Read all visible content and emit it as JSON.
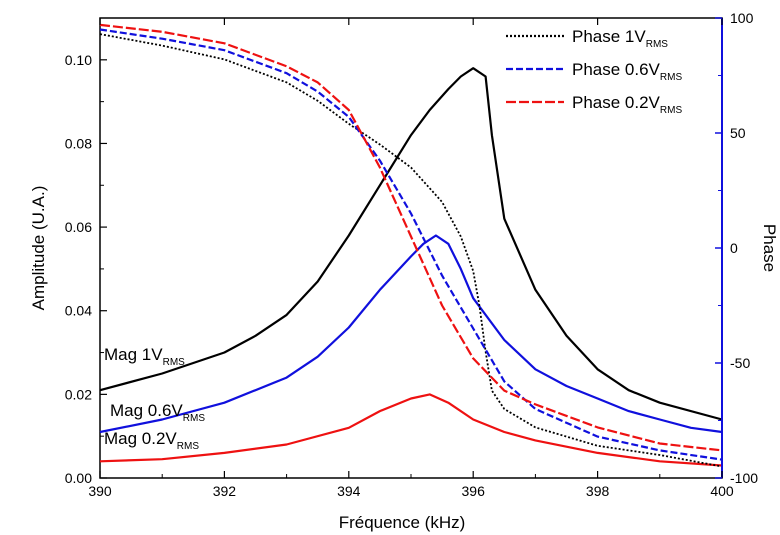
{
  "chart_data": {
    "type": "line",
    "title": "",
    "xlabel": "Fréquence (kHz)",
    "ylabel_left": "Amplitude (U.A.)",
    "ylabel_right": "Phase",
    "xlim": [
      390,
      400
    ],
    "ylim_left": [
      0.0,
      0.11
    ],
    "ylim_right": [
      -100,
      100
    ],
    "x_ticks": [
      "390",
      "392",
      "394",
      "396",
      "398",
      "400"
    ],
    "y_left_ticks": [
      "0.00",
      "0.02",
      "0.04",
      "0.06",
      "0.08",
      "0.10"
    ],
    "y_right_ticks": [
      "-100",
      "-50",
      "0",
      "50",
      "100"
    ],
    "legend_position": "top-right",
    "colors": {
      "v1": "#000000",
      "v06": "#1010dd",
      "v02": "#ee1111",
      "right_axis": "#1010dd"
    },
    "series": [
      {
        "name": "Mag 1V",
        "name_sub": "RMS",
        "axis": "left",
        "color": "#000000",
        "style": "solid",
        "x": [
          390,
          391,
          392,
          392.5,
          393,
          393.5,
          394,
          394.5,
          395,
          395.3,
          395.6,
          395.8,
          396,
          396.2,
          396.3,
          396.5,
          397,
          397.5,
          398,
          398.5,
          399,
          400
        ],
        "y": [
          0.021,
          0.025,
          0.03,
          0.034,
          0.039,
          0.047,
          0.058,
          0.07,
          0.082,
          0.088,
          0.093,
          0.096,
          0.098,
          0.096,
          0.082,
          0.062,
          0.045,
          0.034,
          0.026,
          0.021,
          0.018,
          0.014
        ]
      },
      {
        "name": "Mag 0.6V",
        "name_sub": "RMS",
        "axis": "left",
        "color": "#1010dd",
        "style": "solid",
        "x": [
          390,
          391,
          392,
          393,
          393.5,
          394,
          394.5,
          395,
          395.2,
          395.4,
          395.6,
          395.8,
          396,
          396.5,
          397,
          397.5,
          398,
          398.5,
          399,
          399.5,
          400
        ],
        "y": [
          0.011,
          0.014,
          0.018,
          0.024,
          0.029,
          0.036,
          0.045,
          0.053,
          0.056,
          0.058,
          0.056,
          0.05,
          0.043,
          0.033,
          0.026,
          0.022,
          0.019,
          0.016,
          0.014,
          0.012,
          0.011
        ]
      },
      {
        "name": "Mag 0.2V",
        "name_sub": "RMS",
        "axis": "left",
        "color": "#ee1111",
        "style": "solid",
        "x": [
          390,
          391,
          392,
          393,
          394,
          394.5,
          395,
          395.3,
          395.6,
          396,
          396.5,
          397,
          398,
          399,
          400
        ],
        "y": [
          0.004,
          0.0045,
          0.006,
          0.008,
          0.012,
          0.016,
          0.019,
          0.02,
          0.018,
          0.014,
          0.011,
          0.009,
          0.006,
          0.004,
          0.003
        ]
      },
      {
        "name": "Phase 1V",
        "name_sub": "RMS",
        "axis": "right",
        "color": "#000000",
        "style": "dotted",
        "x": [
          390,
          391,
          392,
          393,
          393.5,
          394,
          394.5,
          395,
          395.5,
          395.8,
          396,
          396.1,
          396.2,
          396.3,
          396.5,
          397,
          397.5,
          398,
          399,
          400
        ],
        "y": [
          93,
          88,
          82,
          72,
          64,
          54,
          45,
          35,
          20,
          5,
          -10,
          -25,
          -45,
          -62,
          -70,
          -78,
          -82,
          -86,
          -90,
          -95
        ]
      },
      {
        "name": "Phase 0.6V",
        "name_sub": "RMS",
        "axis": "right",
        "color": "#1010dd",
        "style": "dashed",
        "x": [
          390,
          391,
          392,
          393,
          393.5,
          394,
          394.5,
          395,
          395.5,
          396,
          396.5,
          397,
          398,
          399,
          400
        ],
        "y": [
          95,
          91,
          86,
          76,
          68,
          57,
          38,
          15,
          -12,
          -35,
          -58,
          -70,
          -82,
          -88,
          -92
        ]
      },
      {
        "name": "Phase 0.2V",
        "name_sub": "RMS",
        "axis": "right",
        "color": "#ee1111",
        "style": "longdash",
        "x": [
          390,
          391,
          392,
          393,
          393.5,
          394,
          394.5,
          395,
          395.5,
          396,
          396.5,
          397,
          398,
          399,
          400
        ],
        "y": [
          97,
          94,
          89,
          79,
          72,
          60,
          35,
          5,
          -25,
          -48,
          -62,
          -68,
          -78,
          -85,
          -88
        ]
      }
    ]
  }
}
